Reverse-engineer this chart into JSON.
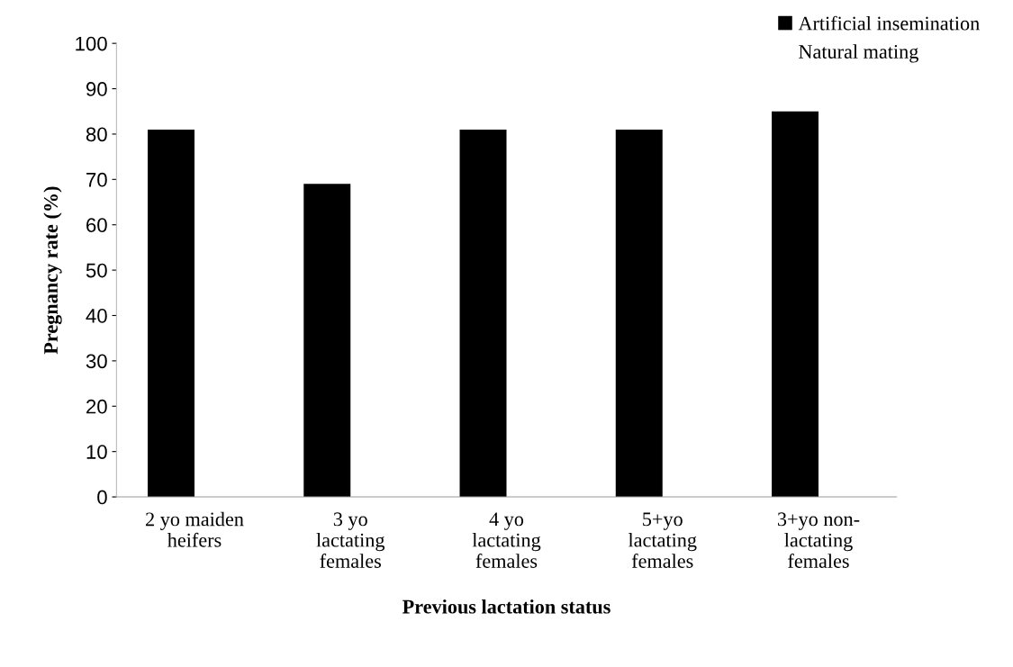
{
  "chart_data": {
    "type": "bar",
    "xlabel": "Previous lactation status",
    "ylabel": "Pregnancy rate (%)",
    "categories": [
      "2 yo maiden\nheifers",
      "3 yo\nlactating\nfemales",
      "4 yo\nlactating\nfemales",
      "5+yo\nlactating\nfemales",
      "3+yo non-\nlactating\nfemales"
    ],
    "series": [
      {
        "name": "Artificial insemination",
        "color": "#000000",
        "values": [
          81,
          69,
          81,
          81,
          85
        ]
      },
      {
        "name": "Natural mating",
        "values": [
          null,
          null,
          null,
          null,
          null
        ]
      }
    ],
    "ylim": [
      0,
      100
    ],
    "yticks": [
      0,
      10,
      20,
      30,
      40,
      50,
      60,
      70,
      80,
      90,
      100
    ],
    "grid": false,
    "legend": "top right"
  }
}
